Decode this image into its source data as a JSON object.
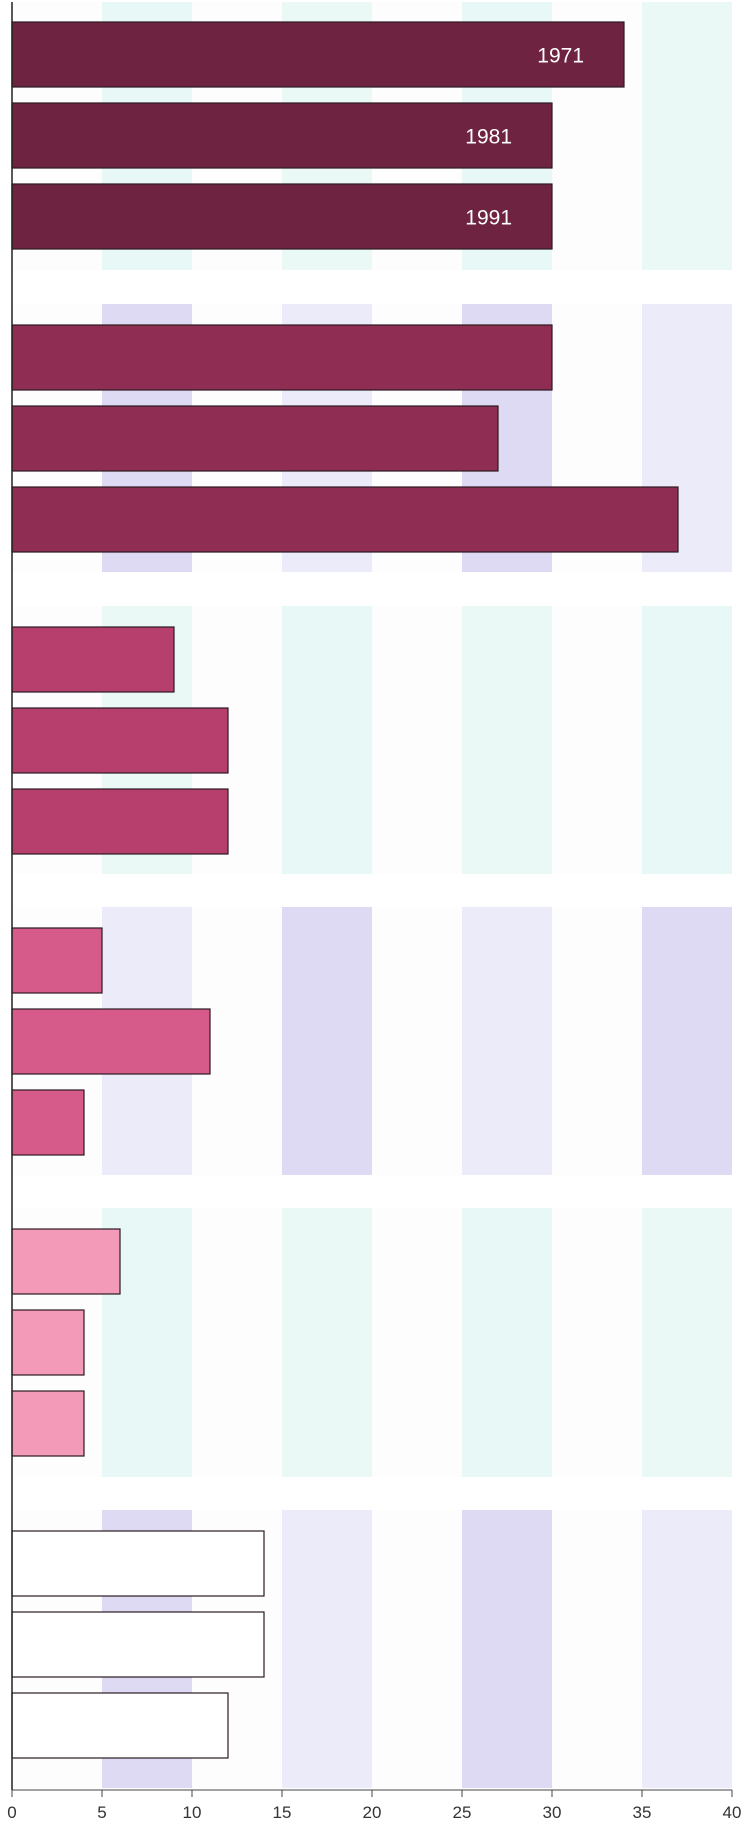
{
  "chart_data": {
    "type": "bar",
    "orientation": "horizontal",
    "title": "",
    "xlabel": "",
    "ylabel": "",
    "xlim": [
      0,
      40
    ],
    "xticks": [
      "0",
      "5",
      "10",
      "15",
      "20",
      "25",
      "30",
      "35",
      "40"
    ],
    "grid": "alternating vertical bands",
    "legend": "labels on first group bars",
    "series": [
      {
        "name": "1971",
        "values": [
          34,
          30,
          9,
          5,
          6,
          14
        ],
        "color": "#6e2340"
      },
      {
        "name": "1981",
        "values": [
          30,
          27,
          12,
          11,
          4,
          14
        ],
        "color": "#8f2d52"
      },
      {
        "name": "1991",
        "values": [
          30,
          37,
          12,
          4,
          4,
          12
        ],
        "color": "#b63f6e"
      }
    ],
    "group_colors": [
      "#6e2340",
      "#8f2d52",
      "#b63f6e",
      "#d65a8a",
      "#f29ab8",
      "#ffffff"
    ]
  }
}
